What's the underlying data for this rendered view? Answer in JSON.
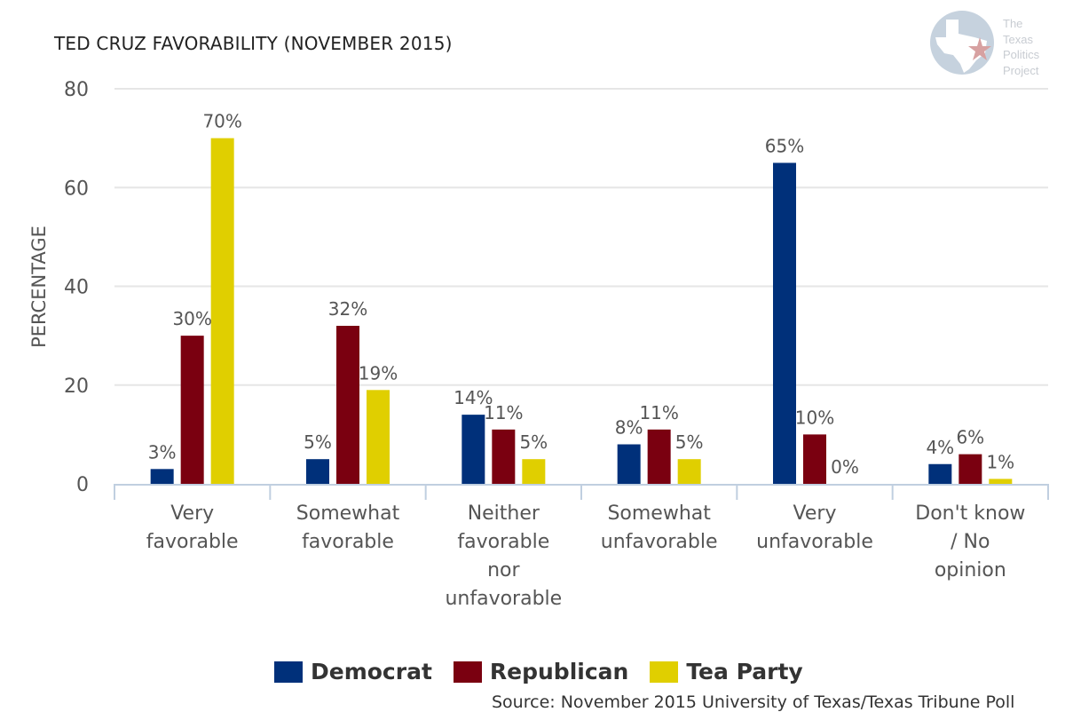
{
  "chart_data": {
    "type": "bar",
    "title": "TED CRUZ FAVORABILITY (NOVEMBER 2015)",
    "xlabel": "",
    "ylabel": "PERCENTAGE",
    "ylim": [
      0,
      80
    ],
    "yticks": [
      0,
      20,
      40,
      60,
      80
    ],
    "grid": true,
    "legend_position": "bottom",
    "categories": [
      [
        "Very",
        "favorable"
      ],
      [
        "Somewhat",
        "favorable"
      ],
      [
        "Neither",
        "favorable",
        "nor",
        "unfavorable"
      ],
      [
        "Somewhat",
        "unfavorable"
      ],
      [
        "Very",
        "unfavorable"
      ],
      [
        "Don't know",
        "/ No",
        "opinion"
      ]
    ],
    "series": [
      {
        "name": "Democrat",
        "color": "#00307a",
        "values": [
          3,
          5,
          14,
          8,
          65,
          4
        ]
      },
      {
        "name": "Republican",
        "color": "#7a0010",
        "values": [
          30,
          32,
          11,
          11,
          10,
          6
        ]
      },
      {
        "name": "Tea Party",
        "color": "#e0cf00",
        "values": [
          70,
          19,
          5,
          5,
          0,
          1
        ]
      }
    ],
    "value_suffix": "%",
    "source": "Source: November 2015 University of Texas/Texas Tribune Poll"
  },
  "logo": {
    "lines": [
      "The",
      "Texas",
      "Politics",
      "Project"
    ]
  }
}
